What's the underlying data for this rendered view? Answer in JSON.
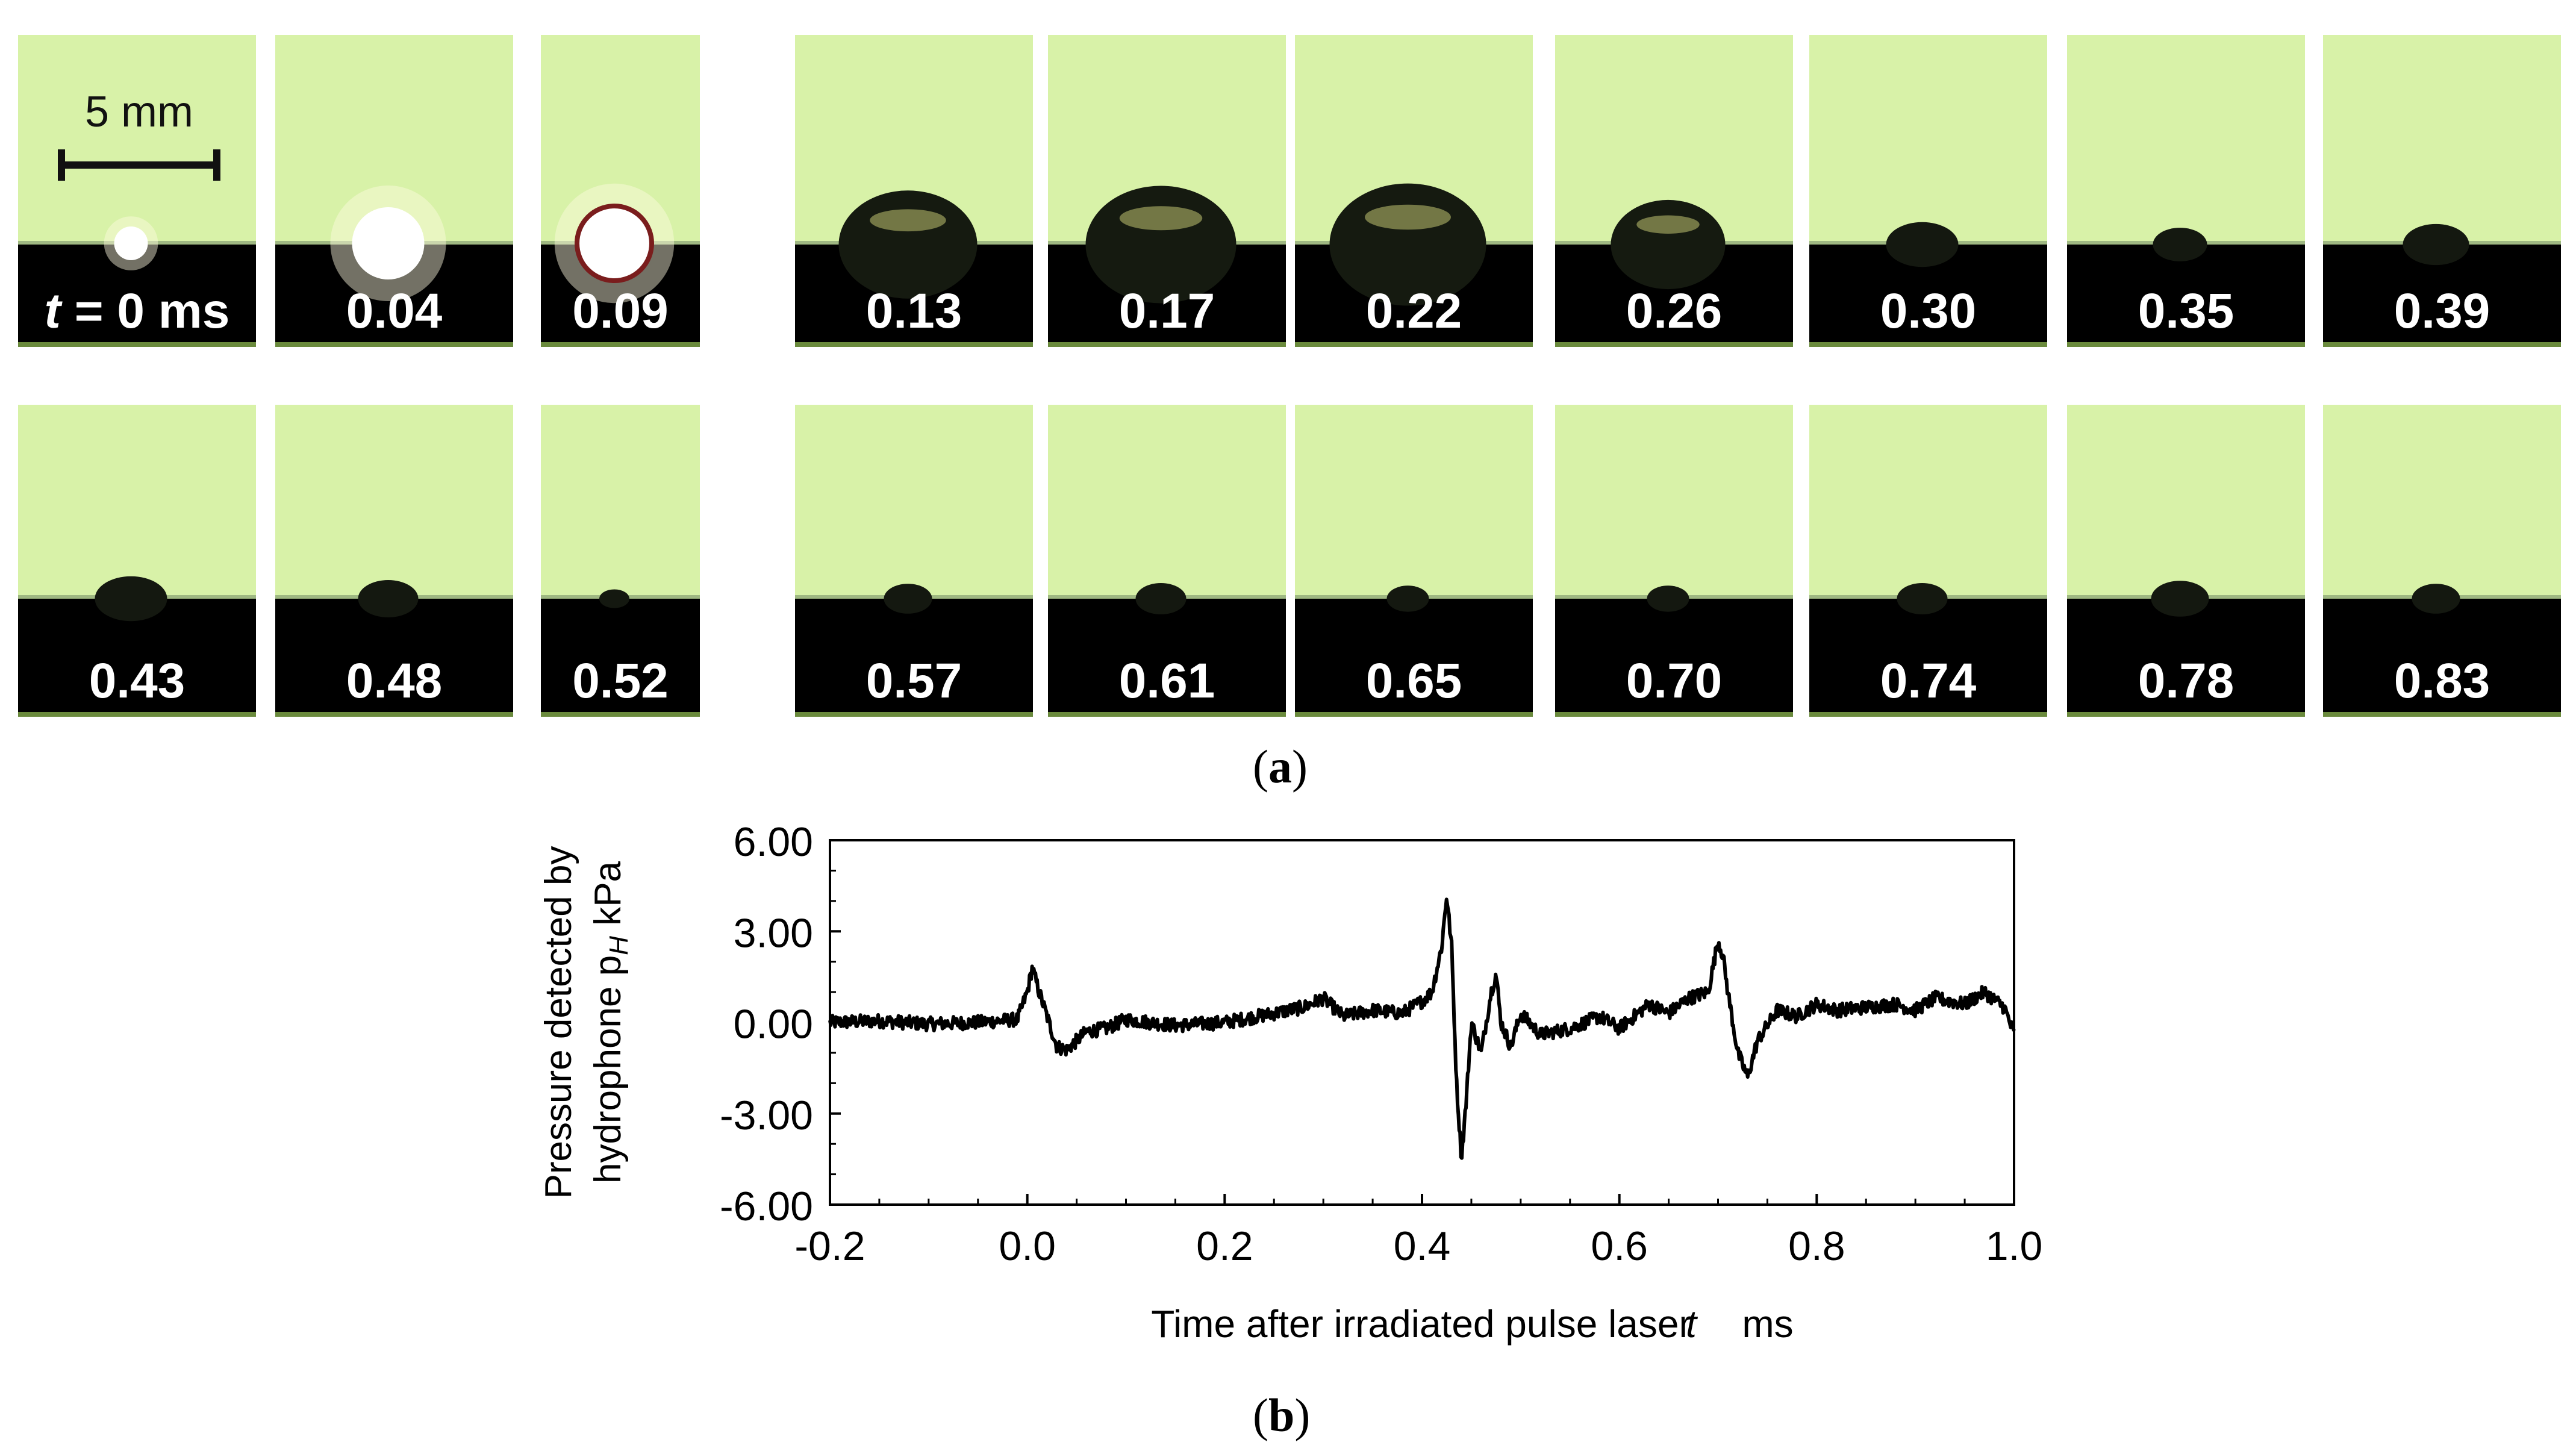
{
  "figure": {
    "panel_a": {
      "scale_label": "5 mm",
      "first_label_prefix": "t",
      "first_label_suffix": "= 0 ms",
      "row1_labels": [
        "",
        "0.04",
        "0.09",
        "0.13",
        "0.17",
        "0.22",
        "0.26",
        "0.30",
        "0.35",
        "0.39"
      ],
      "row2_labels": [
        "0.43",
        "0.48",
        "0.52",
        "0.57",
        "0.61",
        "0.65",
        "0.70",
        "0.74",
        "0.78",
        "0.83"
      ],
      "caption_open": "(",
      "caption_letter": "a",
      "caption_close": ")",
      "colors": {
        "background_green": "#d8f2a8",
        "substrate": "#000000"
      }
    },
    "panel_b": {
      "caption_open": "(",
      "caption_letter": "b",
      "caption_close": ")"
    }
  },
  "chart_data": {
    "type": "line",
    "ylabel_line1": "Pressure detected by",
    "ylabel_line2": "hydrophone p",
    "ylabel_sub": "H",
    "ylabel_unit": " kPa",
    "xlabel": "Time after irradiated pulse laser",
    "xlabel_var": "t",
    "xlabel_unit": "ms",
    "xlim": [
      -0.2,
      1.0
    ],
    "ylim": [
      -6.0,
      6.0
    ],
    "xticks": [
      "-0.2",
      "0.0",
      "0.2",
      "0.4",
      "0.6",
      "0.8",
      "1.0"
    ],
    "yticks": [
      "6.00",
      "3.00",
      "0.00",
      "-3.00",
      "-6.00"
    ],
    "grid": false,
    "series": [
      {
        "x": [
          -0.2,
          -0.15,
          -0.1,
          -0.05,
          -0.01,
          0.0,
          0.005,
          0.012,
          0.02,
          0.03,
          0.04,
          0.06,
          0.08,
          0.1,
          0.15,
          0.2,
          0.25,
          0.28,
          0.3,
          0.32,
          0.35,
          0.38,
          0.4,
          0.41,
          0.42,
          0.425,
          0.43,
          0.435,
          0.44,
          0.445,
          0.45,
          0.46,
          0.47,
          0.475,
          0.48,
          0.49,
          0.5,
          0.52,
          0.55,
          0.58,
          0.6,
          0.63,
          0.65,
          0.67,
          0.69,
          0.7,
          0.705,
          0.71,
          0.72,
          0.73,
          0.74,
          0.76,
          0.78,
          0.8,
          0.82,
          0.85,
          0.88,
          0.9,
          0.92,
          0.95,
          0.97,
          0.99,
          1.0
        ],
        "y": [
          0.0,
          0.05,
          -0.05,
          0.0,
          0.1,
          1.0,
          1.8,
          1.0,
          0.2,
          -0.8,
          -0.9,
          -0.3,
          -0.2,
          0.1,
          -0.1,
          0.0,
          0.3,
          0.5,
          0.8,
          0.2,
          0.4,
          0.3,
          0.7,
          1.0,
          2.5,
          4.2,
          2.5,
          -2.0,
          -4.5,
          -2.5,
          0.0,
          -1.0,
          1.0,
          1.6,
          0.0,
          -0.8,
          0.3,
          -0.4,
          -0.2,
          0.2,
          -0.2,
          0.6,
          0.3,
          0.8,
          1.0,
          2.7,
          2.2,
          1.0,
          -1.0,
          -1.8,
          -0.6,
          0.4,
          0.2,
          0.6,
          0.4,
          0.5,
          0.6,
          0.4,
          0.8,
          0.6,
          1.0,
          0.5,
          -0.4
        ]
      }
    ]
  }
}
